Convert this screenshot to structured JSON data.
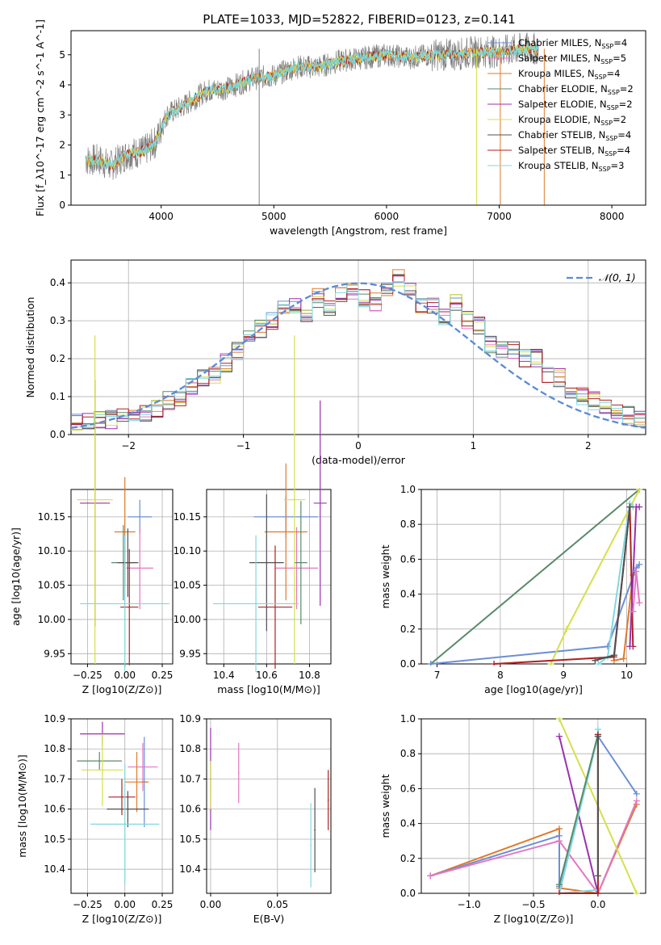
{
  "figure": {
    "title": "PLATE=1033, MJD=52822, FIBERID=0123, z=0.141"
  },
  "chart_data": [
    {
      "id": "spectrum",
      "type": "line",
      "xlabel": "wavelength [Angstrom, rest frame]",
      "ylabel": "Flux [f_λ10^-17 erg cm^-2 s^-1 A^-1]",
      "xlim": [
        3200,
        8300
      ],
      "ylim": [
        0,
        5.8
      ],
      "xticks": [
        4000,
        5000,
        6000,
        7000,
        8000
      ],
      "yticks": [
        0,
        1,
        2,
        3,
        4,
        5
      ],
      "grid": false,
      "legend_position": "right",
      "data_color": "#808080",
      "model_color": "#79d8dd",
      "continuum": {
        "x": [
          3330,
          3450,
          3550,
          3700,
          3850,
          3950,
          4050,
          4200,
          4400,
          4600,
          4800,
          5000,
          5200,
          5400,
          5600,
          5800,
          6000,
          6200,
          6400,
          6600,
          6800,
          7000,
          7200,
          7350
        ],
        "y": [
          1.5,
          1.5,
          1.3,
          1.7,
          1.8,
          2.1,
          3.0,
          3.3,
          3.8,
          3.9,
          4.2,
          4.3,
          4.6,
          4.6,
          4.8,
          4.9,
          5.0,
          4.9,
          5.0,
          5.0,
          5.1,
          5.1,
          5.2,
          5.2
        ]
      },
      "legend": [
        {
          "label": "Chabrier MILES, N",
          "sub": "SSP",
          "suffix": "=4",
          "color": "#6a8fd6"
        },
        {
          "label": "Salpeter MILES, N",
          "sub": "SSP",
          "suffix": "=5",
          "color": "#e377c2"
        },
        {
          "label": "Kroupa MILES, N",
          "sub": "SSP",
          "suffix": "=4",
          "color": "#e07a2a"
        },
        {
          "label": "Chabrier ELODIE, N",
          "sub": "SSP",
          "suffix": "=2",
          "color": "#5a8a6a"
        },
        {
          "label": "Salpeter ELODIE, N",
          "sub": "SSP",
          "suffix": "=2",
          "color": "#9b30b0"
        },
        {
          "label": "Kroupa ELODIE, N",
          "sub": "SSP",
          "suffix": "=2",
          "color": "#d4e04a"
        },
        {
          "label": "Chabrier STELIB, N",
          "sub": "SSP",
          "suffix": "=4",
          "color": "#505050"
        },
        {
          "label": "Salpeter STELIB, N",
          "sub": "SSP",
          "suffix": "=4",
          "color": "#b02020"
        },
        {
          "label": "Kroupa STELIB, N",
          "sub": "SSP",
          "suffix": "=3",
          "color": "#80d8e0"
        }
      ]
    },
    {
      "id": "residuals",
      "type": "line",
      "xlabel": "(data-model)/error",
      "ylabel": "Normed distribution",
      "xlim": [
        -2.5,
        2.5
      ],
      "ylim": [
        0,
        0.46
      ],
      "xticks": [
        -2,
        -1,
        0,
        1,
        2
      ],
      "yticks": [
        0.0,
        0.1,
        0.2,
        0.3,
        0.4
      ],
      "grid": true,
      "legend_position": "top-right",
      "gaussian_label": "𝒩(0, 1)",
      "gaussian_color": "#5b8ad8",
      "bin_width": 0.1,
      "bins_center": [
        0.03,
        0.035,
        0.04,
        0.04,
        0.045,
        0.05,
        0.06,
        0.07,
        0.09,
        0.1,
        0.13,
        0.15,
        0.16,
        0.19,
        0.22,
        0.26,
        0.28,
        0.3,
        0.33,
        0.34,
        0.32,
        0.36,
        0.33,
        0.37,
        0.38,
        0.36,
        0.35,
        0.38,
        0.41,
        0.39,
        0.34,
        0.34,
        0.31,
        0.35,
        0.3,
        0.29,
        0.24,
        0.22,
        0.22,
        0.2,
        0.2,
        0.16,
        0.15,
        0.11,
        0.1,
        0.09,
        0.07,
        0.06,
        0.05,
        0.04
      ],
      "series_colors": [
        "#6a8fd6",
        "#e377c2",
        "#e07a2a",
        "#5a8a6a",
        "#9b30b0",
        "#d4e04a",
        "#505050",
        "#b02020",
        "#80d8e0"
      ]
    },
    {
      "id": "age-vs-Z",
      "type": "scatter",
      "xlabel": "Z [log10(Z/Z⊙)]",
      "ylabel": "age [log10(age/yr)]",
      "xlim": [
        -0.36,
        0.32
      ],
      "ylim": [
        9.935,
        10.19
      ],
      "xticks": [
        -0.25,
        0.0,
        0.25
      ],
      "yticks": [
        9.95,
        10.0,
        10.05,
        10.1,
        10.15
      ],
      "grid": true,
      "errorbars": [
        {
          "x": 0.1,
          "y": 10.15,
          "xerr": 0.08,
          "yerr": 0.025,
          "color": "#6a8fd6"
        },
        {
          "x": 0.1,
          "y": 10.075,
          "xerr": 0.09,
          "yerr": 0.06,
          "color": "#e377c2"
        },
        {
          "x": 0.0,
          "y": 10.128,
          "xerr": 0.07,
          "yerr": 0.08,
          "color": "#e07a2a"
        },
        {
          "x": -0.01,
          "y": 10.083,
          "xerr": 0.08,
          "yerr": 0.055,
          "color": "#5a8a6a"
        },
        {
          "x": -0.2,
          "y": 10.17,
          "xerr": 0.1,
          "yerr": 0.18,
          "color": "#9b30b0"
        },
        {
          "x": -0.2,
          "y": 10.175,
          "xerr": 0.12,
          "yerr": 0.24,
          "color": "#d4e04a"
        },
        {
          "x": 0.02,
          "y": 10.083,
          "xerr": 0.07,
          "yerr": 0.05,
          "color": "#505050"
        },
        {
          "x": 0.03,
          "y": 10.018,
          "xerr": 0.06,
          "yerr": 0.085,
          "color": "#b02020"
        },
        {
          "x": 0.0,
          "y": 10.023,
          "xerr": 0.3,
          "yerr": 0.1,
          "color": "#80d8e0"
        }
      ]
    },
    {
      "id": "age-vs-mass",
      "type": "scatter",
      "xlabel": "mass [log10(M/M⊙)]",
      "ylabel": "",
      "xlim": [
        10.32,
        10.9
      ],
      "ylim": [
        9.935,
        10.19
      ],
      "xticks": [
        10.4,
        10.6,
        10.8
      ],
      "yticks": [
        9.95,
        10.0,
        10.05,
        10.1,
        10.15
      ],
      "grid": true,
      "errorbars": [
        {
          "x": 10.69,
          "y": 10.15,
          "xerr": 0.15,
          "yerr": 0.03,
          "color": "#6a8fd6"
        },
        {
          "x": 10.74,
          "y": 10.075,
          "xerr": 0.1,
          "yerr": 0.06,
          "color": "#e377c2"
        },
        {
          "x": 10.69,
          "y": 10.128,
          "xerr": 0.1,
          "yerr": 0.1,
          "color": "#e07a2a"
        },
        {
          "x": 10.76,
          "y": 10.083,
          "xerr": 0.03,
          "yerr": 0.09,
          "color": "#5a8a6a"
        },
        {
          "x": 10.85,
          "y": 10.17,
          "xerr": 0.03,
          "yerr": 0.15,
          "color": "#9b30b0"
        },
        {
          "x": 10.73,
          "y": 10.175,
          "xerr": 0.05,
          "yerr": 0.24,
          "color": "#d4e04a"
        },
        {
          "x": 10.6,
          "y": 10.083,
          "xerr": 0.08,
          "yerr": 0.1,
          "color": "#505050"
        },
        {
          "x": 10.64,
          "y": 10.018,
          "xerr": 0.08,
          "yerr": 0.09,
          "color": "#b02020"
        },
        {
          "x": 10.55,
          "y": 10.023,
          "xerr": 0.2,
          "yerr": 0.1,
          "color": "#80d8e0"
        }
      ]
    },
    {
      "id": "weight-vs-age",
      "type": "line",
      "xlabel": "age [log10(age/yr)]",
      "ylabel": "mass weight",
      "xlim": [
        6.75,
        10.3
      ],
      "ylim": [
        0,
        1.0
      ],
      "xticks": [
        7,
        8,
        9,
        10
      ],
      "yticks": [
        0.0,
        0.2,
        0.4,
        0.6,
        0.8,
        1.0
      ],
      "grid": true,
      "series": [
        {
          "color": "#5a8a6a",
          "x": [
            6.9,
            10.2
          ],
          "y": [
            0.0,
            1.0
          ]
        },
        {
          "color": "#6a8fd6",
          "x": [
            6.9,
            9.7,
            10.15,
            10.2
          ],
          "y": [
            0.0,
            0.1,
            0.55,
            0.57
          ]
        },
        {
          "color": "#d4e04a",
          "x": [
            8.8,
            9.05,
            10.2
          ],
          "y": [
            0.0,
            0.2,
            1.0
          ]
        },
        {
          "color": "#80d8e0",
          "x": [
            9.55,
            9.7,
            10.05,
            10.1
          ],
          "y": [
            0.0,
            0.04,
            0.92,
            0.9
          ]
        },
        {
          "color": "#e07a2a",
          "x": [
            9.8,
            9.95,
            10.1
          ],
          "y": [
            0.02,
            0.03,
            0.51
          ]
        },
        {
          "color": "#b02020",
          "x": [
            7.9,
            9.8,
            10.05,
            10.1
          ],
          "y": [
            0.0,
            0.04,
            0.9,
            0.1
          ]
        },
        {
          "color": "#9b30b0",
          "x": [
            10.05,
            10.15,
            10.2
          ],
          "y": [
            0.1,
            0.9,
            0.9
          ]
        },
        {
          "color": "#e377c2",
          "x": [
            10.1,
            10.15,
            10.2
          ],
          "y": [
            0.3,
            0.53,
            0.35
          ]
        },
        {
          "color": "#505050",
          "x": [
            9.5,
            9.8,
            10.05
          ],
          "y": [
            0.02,
            0.05,
            0.9
          ]
        }
      ]
    },
    {
      "id": "mass-vs-Z",
      "type": "scatter",
      "xlabel": "Z [log10(Z/Z⊙)]",
      "ylabel": "mass [log10(M/M⊙)]",
      "xlim": [
        -0.36,
        0.32
      ],
      "ylim": [
        10.32,
        10.9
      ],
      "xticks": [
        -0.25,
        0.0,
        0.25
      ],
      "yticks": [
        10.4,
        10.5,
        10.6,
        10.7,
        10.8,
        10.9
      ],
      "grid": true,
      "errorbars": [
        {
          "x": 0.13,
          "y": 10.69,
          "xerr": 0.02,
          "yerr": 0.15,
          "color": "#6a8fd6"
        },
        {
          "x": 0.12,
          "y": 10.74,
          "xerr": 0.1,
          "yerr": 0.08,
          "color": "#e377c2"
        },
        {
          "x": 0.08,
          "y": 10.69,
          "xerr": 0.08,
          "yerr": 0.1,
          "color": "#e07a2a"
        },
        {
          "x": -0.17,
          "y": 10.76,
          "xerr": 0.15,
          "yerr": 0.03,
          "color": "#5a8a6a"
        },
        {
          "x": -0.15,
          "y": 10.85,
          "xerr": 0.15,
          "yerr": 0.04,
          "color": "#9b30b0"
        },
        {
          "x": -0.15,
          "y": 10.73,
          "xerr": 0.14,
          "yerr": 0.12,
          "color": "#d4e04a"
        },
        {
          "x": 0.02,
          "y": 10.6,
          "xerr": 0.14,
          "yerr": 0.06,
          "color": "#505050"
        },
        {
          "x": -0.02,
          "y": 10.64,
          "xerr": 0.09,
          "yerr": 0.06,
          "color": "#b02020"
        },
        {
          "x": 0.0,
          "y": 10.55,
          "xerr": 0.23,
          "yerr": 0.2,
          "color": "#80d8e0"
        }
      ]
    },
    {
      "id": "mass-vs-ebv",
      "type": "scatter",
      "xlabel": "E(B-V)",
      "ylabel": "",
      "xlim": [
        -0.003,
        0.09
      ],
      "ylim": [
        10.32,
        10.9
      ],
      "xticks": [
        0.0,
        0.05
      ],
      "yticks": [
        10.4,
        10.5,
        10.6,
        10.7,
        10.8,
        10.9
      ],
      "grid": true,
      "errorbars": [
        {
          "x": 0.0,
          "y": 10.7,
          "xerr": 0.0005,
          "yerr": 0.17,
          "color": "#9b30b0"
        },
        {
          "x": 0.0,
          "y": 10.68,
          "xerr": 0.0005,
          "yerr": 0.08,
          "color": "#d4e04a"
        },
        {
          "x": 0.021,
          "y": 10.72,
          "xerr": 0.0005,
          "yerr": 0.1,
          "color": "#e377c2"
        },
        {
          "x": 0.075,
          "y": 10.48,
          "xerr": 0.0005,
          "yerr": 0.14,
          "color": "#80d8e0"
        },
        {
          "x": 0.078,
          "y": 10.53,
          "xerr": 0.0005,
          "yerr": 0.14,
          "color": "#505050"
        },
        {
          "x": 0.088,
          "y": 10.63,
          "xerr": 0.0005,
          "yerr": 0.1,
          "color": "#b02020"
        }
      ]
    },
    {
      "id": "weight-vs-Z",
      "type": "line",
      "xlabel": "Z [log10(Z/Z⊙)]",
      "ylabel": "mass weight",
      "xlim": [
        -1.37,
        0.37
      ],
      "ylim": [
        0,
        1.0
      ],
      "xticks": [
        -1.0,
        -0.5,
        0.0
      ],
      "yticks": [
        0.0,
        0.2,
        0.4,
        0.6,
        0.8,
        1.0
      ],
      "grid": true,
      "series": [
        {
          "color": "#e07a2a",
          "x": [
            -1.3,
            -0.3,
            -0.3,
            0.0,
            0.3
          ],
          "y": [
            0.1,
            0.37,
            0.03,
            0.0,
            0.51
          ]
        },
        {
          "color": "#6a8fd6",
          "x": [
            -1.3,
            -0.3,
            -0.3,
            0.0,
            0.3
          ],
          "y": [
            0.1,
            0.33,
            0.04,
            0.9,
            0.57
          ]
        },
        {
          "color": "#e377c2",
          "x": [
            -1.3,
            -0.3,
            0.0,
            0.3
          ],
          "y": [
            0.1,
            0.3,
            0.0,
            0.53
          ]
        },
        {
          "color": "#9b30b0",
          "x": [
            -0.3,
            0.0
          ],
          "y": [
            0.9,
            0.0
          ]
        },
        {
          "color": "#d4e04a",
          "x": [
            -0.3,
            0.3
          ],
          "y": [
            1.0,
            0.0
          ]
        },
        {
          "color": "#80d8e0",
          "x": [
            0.0,
            0.0,
            -0.3,
            0.0
          ],
          "y": [
            0.94,
            0.02,
            0.0,
            0.9
          ]
        },
        {
          "color": "#5a8a6a",
          "x": [
            -0.3,
            0.0
          ],
          "y": [
            0.05,
            0.91
          ]
        },
        {
          "color": "#b02020",
          "x": [
            -0.3,
            0.0,
            0.0
          ],
          "y": [
            0.0,
            0.0,
            0.91
          ]
        },
        {
          "color": "#505050",
          "x": [
            0.0,
            0.0
          ],
          "y": [
            0.1,
            0.9
          ]
        }
      ]
    }
  ]
}
